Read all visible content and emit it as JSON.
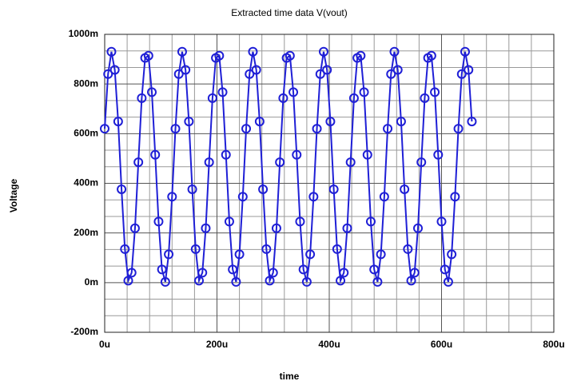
{
  "chart_data": {
    "type": "line",
    "title": "Extracted time data V(vout)",
    "x_label": "time",
    "y_label": "Voltage",
    "x": [
      0,
      6,
      12,
      18,
      24,
      30,
      36,
      42,
      48,
      54,
      60,
      66,
      72,
      78,
      84,
      90,
      96,
      102,
      108,
      114,
      120,
      126,
      132,
      138,
      144,
      150,
      156,
      162,
      168,
      174,
      180,
      186,
      192,
      198,
      204,
      210,
      216,
      222,
      228,
      234,
      240,
      246,
      252,
      258,
      264,
      270,
      276,
      282,
      288,
      294,
      300,
      306,
      312,
      318,
      324,
      330,
      336,
      342,
      348,
      354,
      360,
      366,
      372,
      378,
      384,
      390,
      396,
      402,
      408,
      414,
      420,
      426,
      432,
      438,
      444,
      450,
      456,
      462,
      468,
      474,
      480,
      486,
      492,
      498,
      504,
      510,
      516,
      522,
      528,
      534,
      540,
      546,
      552,
      558,
      564,
      570,
      576,
      582,
      588,
      594,
      600,
      606,
      612,
      618,
      624,
      630,
      636,
      642,
      648,
      654
    ],
    "series": [
      {
        "name": "V(vout)",
        "color": "#1f1fd6",
        "values": [
          620,
          840,
          930,
          857,
          649,
          376,
          135,
          8,
          40,
          219,
          485,
          743,
          905,
          914,
          767,
          515,
          246,
          53,
          3,
          114,
          346,
          620,
          840,
          930,
          857,
          649,
          376,
          135,
          8,
          40,
          219,
          485,
          743,
          905,
          914,
          767,
          515,
          246,
          53,
          3,
          114,
          346,
          620,
          840,
          930,
          857,
          649,
          376,
          135,
          8,
          40,
          219,
          485,
          743,
          905,
          914,
          767,
          515,
          246,
          53,
          3,
          114,
          346,
          620,
          840,
          930,
          857,
          649,
          376,
          135,
          8,
          40,
          219,
          485,
          743,
          905,
          914,
          767,
          515,
          246,
          53,
          3,
          114,
          346,
          620,
          840,
          930,
          857,
          649,
          376,
          135,
          8,
          40,
          219,
          485,
          743,
          905,
          914,
          767,
          515,
          246,
          53,
          3,
          114,
          346,
          620,
          840,
          930,
          857,
          649
        ]
      }
    ],
    "xlim": [
      0,
      800
    ],
    "ylim": [
      -200,
      1000
    ],
    "xticks": [
      {
        "value": 0,
        "label": "0u"
      },
      {
        "value": 200,
        "label": "200u"
      },
      {
        "value": 400,
        "label": "400u"
      },
      {
        "value": 600,
        "label": "600u"
      },
      {
        "value": 800,
        "label": "800u"
      }
    ],
    "yticks": [
      {
        "value": -200,
        "label": "-200m"
      },
      {
        "value": 0,
        "label": "0m"
      },
      {
        "value": 200,
        "label": "200m"
      },
      {
        "value": 400,
        "label": "400m"
      },
      {
        "value": 600,
        "label": "600m"
      },
      {
        "value": 800,
        "label": "800m"
      },
      {
        "value": 1000,
        "label": "1000m"
      }
    ],
    "grid": true,
    "markers": true
  }
}
